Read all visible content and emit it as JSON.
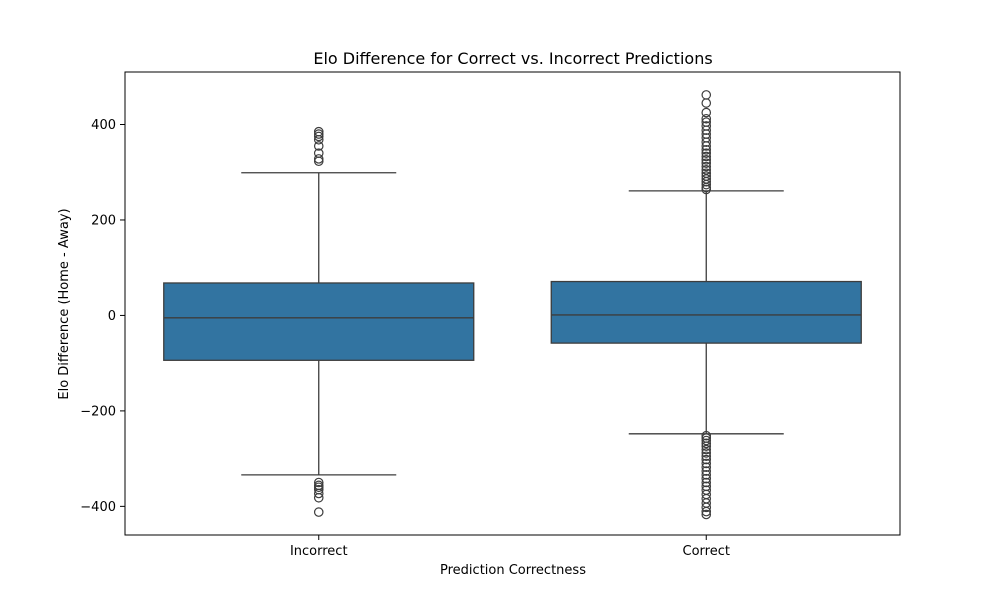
{
  "chart_data": {
    "type": "box",
    "title": "Elo Difference for Correct vs. Incorrect Predictions",
    "xlabel": "Prediction Correctness",
    "ylabel": "Elo Difference (Home - Away)",
    "ylim": [
      -460,
      510
    ],
    "yticks": [
      {
        "value": 400,
        "label": "400"
      },
      {
        "value": 200,
        "label": "200"
      },
      {
        "value": 0,
        "label": "0"
      },
      {
        "value": -200,
        "label": "−200"
      },
      {
        "value": -400,
        "label": "−400"
      }
    ],
    "grid": false,
    "box_color": "#3274a1",
    "line_color": "#3d3d3d",
    "categories": [
      "Incorrect",
      "Correct"
    ],
    "boxes": [
      {
        "category": "Incorrect",
        "whisker_low": -334,
        "q1": -94,
        "median": -5,
        "q3": 68,
        "whisker_high": 299,
        "outliers": [
          385,
          380,
          375,
          368,
          355,
          340,
          328,
          323,
          -350,
          -356,
          -360,
          -365,
          -373,
          -382,
          -412
        ]
      },
      {
        "category": "Correct",
        "whisker_low": -248,
        "q1": -58,
        "median": 1,
        "q3": 71,
        "whisker_high": 261,
        "outliers": [
          462,
          445,
          425,
          412,
          405,
          397,
          388,
          380,
          372,
          363,
          355,
          347,
          340,
          333,
          326,
          319,
          312,
          305,
          298,
          292,
          286,
          280,
          274,
          268,
          264,
          -252,
          -257,
          -262,
          -268,
          -274,
          -281,
          -288,
          -295,
          -302,
          -310,
          -318,
          -326,
          -334,
          -342,
          -350,
          -358,
          -366,
          -375,
          -384,
          -393,
          -402,
          -411,
          -417
        ]
      }
    ]
  }
}
